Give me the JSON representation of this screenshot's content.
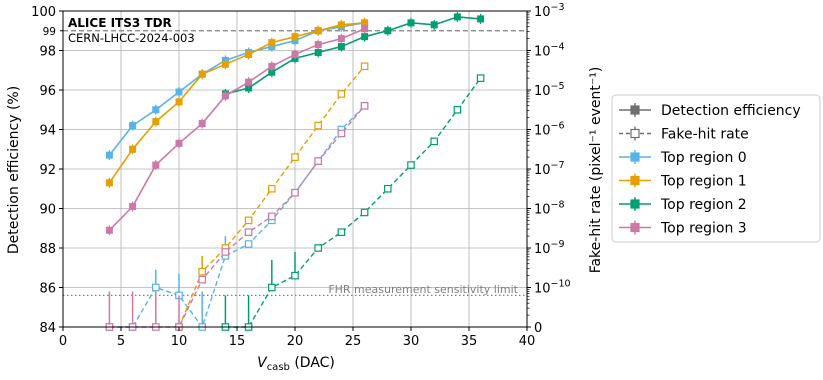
{
  "chart_data": {
    "type": "line",
    "annotation_title": "ALICE ITS3 TDR",
    "annotation_subtitle": "CERN-LHCC-2024-003",
    "sensitivity_label": "FHR measurement sensitivity limit",
    "xlabel_main": "V",
    "xlabel_sub": "casb",
    "xlabel_unit": " (DAC)",
    "ylabel_left": "Detection efficiency (%)",
    "ylabel_right": "Fake-hit rate (pixel⁻¹ event⁻¹)",
    "xlim": [
      0,
      40
    ],
    "ylim_left": [
      84,
      100
    ],
    "ylim_right_log": [
      -11,
      -3
    ],
    "x_ticks": [
      0,
      5,
      10,
      15,
      20,
      25,
      30,
      35,
      40
    ],
    "y_left_ticks": [
      84,
      86,
      88,
      90,
      92,
      94,
      96,
      98,
      100
    ],
    "y_left_extra_tick": 99,
    "y_right_ticks": [
      {
        "exp": -11,
        "label": "0"
      },
      {
        "exp": -10,
        "label": "10",
        "sup": "−10"
      },
      {
        "exp": -9,
        "label": "10",
        "sup": "−9"
      },
      {
        "exp": -8,
        "label": "10",
        "sup": "−8"
      },
      {
        "exp": -7,
        "label": "10",
        "sup": "−7"
      },
      {
        "exp": -6,
        "label": "10",
        "sup": "−6"
      },
      {
        "exp": -5,
        "label": "10",
        "sup": "−5"
      },
      {
        "exp": -4,
        "label": "10",
        "sup": "−4"
      },
      {
        "exp": -3,
        "label": "10",
        "sup": "−3"
      }
    ],
    "reference_line_efficiency": 99,
    "sensitivity_limit_log": -10.2,
    "grid": true,
    "legend_placement": "right, outside plot",
    "legend": [
      {
        "label": "Detection efficiency",
        "color": "#6e6e6e",
        "style": "solid-filled"
      },
      {
        "label": "Fake-hit rate",
        "color": "#6e6e6e",
        "style": "dashed-open"
      },
      {
        "label": "Top region 0",
        "color": "#56b4e9",
        "style": "solid-filled"
      },
      {
        "label": "Top region 1",
        "color": "#e69f00",
        "style": "solid-filled"
      },
      {
        "label": "Top region 2",
        "color": "#009e73",
        "style": "solid-filled"
      },
      {
        "label": "Top region 3",
        "color": "#cc79a7",
        "style": "solid-filled"
      }
    ],
    "series": [
      {
        "name": "Top region 0",
        "color": "#56b4e9",
        "efficiency": {
          "x": [
            4,
            6,
            8,
            10,
            12,
            14,
            16,
            18,
            20,
            22,
            24,
            26
          ],
          "y": [
            92.7,
            94.2,
            95.0,
            95.9,
            96.8,
            97.5,
            97.9,
            98.2,
            98.5,
            99.0,
            99.2,
            99.4
          ]
        },
        "fhr_log": {
          "x": [
            4,
            6,
            8,
            10,
            12,
            14,
            16,
            18,
            20,
            22,
            24,
            26
          ],
          "y": [
            -11,
            -11,
            -10.0,
            -10.2,
            -11,
            -9.2,
            -8.9,
            -8.3,
            -7.6,
            -6.8,
            -6.0,
            -5.4
          ],
          "err_up": [
            null,
            null,
            0.45,
            0.55,
            0.9,
            0.5,
            null,
            null,
            null,
            null,
            null,
            null
          ]
        }
      },
      {
        "name": "Top region 1",
        "color": "#e69f00",
        "efficiency": {
          "x": [
            4,
            6,
            8,
            10,
            12,
            14,
            16,
            18,
            20,
            22,
            24,
            26
          ],
          "y": [
            91.3,
            93.0,
            94.4,
            95.4,
            96.8,
            97.3,
            97.8,
            98.4,
            98.7,
            99.0,
            99.3,
            99.4
          ]
        },
        "fhr_log": {
          "x": [
            10,
            12,
            14,
            16,
            18,
            20,
            22,
            24,
            26
          ],
          "y": [
            -11,
            -9.6,
            -9.0,
            -8.3,
            -7.5,
            -6.7,
            -5.9,
            -5.1,
            -4.4
          ],
          "err_up": [
            null,
            0.4,
            null,
            null,
            null,
            null,
            null,
            null,
            null
          ]
        }
      },
      {
        "name": "Top region 2",
        "color": "#009e73",
        "efficiency": {
          "x": [
            14,
            16,
            18,
            20,
            22,
            24,
            26,
            28,
            30,
            32,
            34,
            36
          ],
          "y": [
            95.8,
            96.1,
            96.9,
            97.6,
            97.9,
            98.2,
            98.7,
            99.0,
            99.4,
            99.3,
            99.7,
            99.6
          ]
        },
        "fhr_log": {
          "x": [
            14,
            16,
            18,
            20,
            22,
            24,
            26,
            28,
            30,
            32,
            34,
            36
          ],
          "y": [
            -11,
            -11,
            -10.0,
            -9.7,
            -9.0,
            -8.6,
            -8.1,
            -7.5,
            -6.9,
            -6.3,
            -5.5,
            -4.7
          ],
          "err_up": [
            0.8,
            0.8,
            0.7,
            0.6,
            null,
            null,
            null,
            null,
            null,
            null,
            null,
            null
          ]
        }
      },
      {
        "name": "Top region 3",
        "color": "#cc79a7",
        "efficiency": {
          "x": [
            4,
            6,
            8,
            10,
            12,
            14,
            16,
            18,
            20,
            22,
            24,
            26
          ],
          "y": [
            88.9,
            90.1,
            92.2,
            93.3,
            94.3,
            95.7,
            96.4,
            97.2,
            97.8,
            98.3,
            98.6,
            99.1
          ]
        },
        "fhr_log": {
          "x": [
            4,
            6,
            8,
            10,
            12,
            14,
            16,
            18,
            20,
            22,
            24,
            26
          ],
          "y": [
            -11,
            -11,
            -11,
            -11,
            -9.8,
            -9.1,
            -8.6,
            -8.2,
            -7.6,
            -6.8,
            -6.1,
            -5.4
          ],
          "err_up": [
            0.9,
            0.9,
            0.9,
            0.8,
            null,
            null,
            null,
            null,
            null,
            null,
            null,
            null
          ]
        }
      }
    ]
  }
}
